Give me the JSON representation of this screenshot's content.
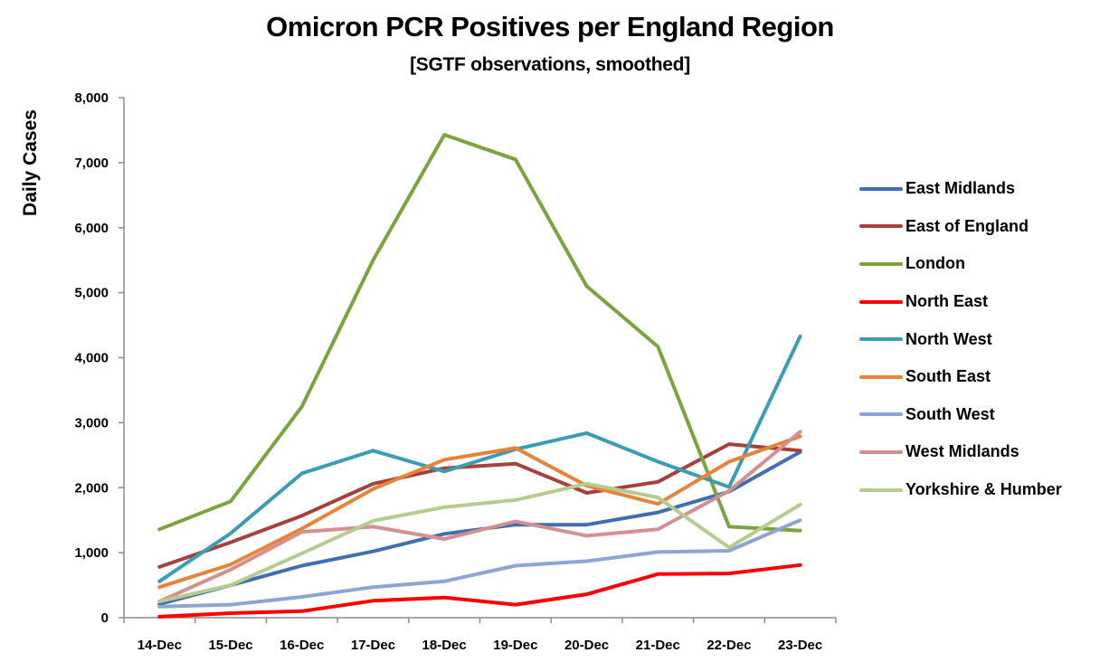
{
  "chart_data": {
    "type": "line",
    "title": "Omicron PCR Positives per England Region",
    "subtitle": "[SGTF observations, smoothed]",
    "xlabel": "",
    "ylabel": "Daily Cases",
    "ylim": [
      0,
      8000
    ],
    "yticks": [
      0,
      1000,
      2000,
      3000,
      4000,
      5000,
      6000,
      7000,
      8000
    ],
    "ytick_labels": [
      "0",
      "1,000",
      "2,000",
      "3,000",
      "4,000",
      "5,000",
      "6,000",
      "7,000",
      "8,000"
    ],
    "grid": false,
    "legend_position": "right",
    "categories": [
      "14-Dec",
      "15-Dec",
      "16-Dec",
      "17-Dec",
      "18-Dec",
      "19-Dec",
      "20-Dec",
      "21-Dec",
      "22-Dec",
      "23-Dec"
    ],
    "series": [
      {
        "name": "East Midlands",
        "color": "#3F6FAE",
        "values": [
          210,
          500,
          800,
          1020,
          1290,
          1430,
          1430,
          1620,
          1940,
          2550
        ]
      },
      {
        "name": "East of England",
        "color": "#A5403D",
        "values": [
          780,
          1160,
          1570,
          2060,
          2300,
          2370,
          1920,
          2090,
          2670,
          2570
        ]
      },
      {
        "name": "London",
        "color": "#7BA33E",
        "values": [
          1360,
          1790,
          3250,
          5500,
          7430,
          7050,
          5100,
          4170,
          1400,
          1340
        ]
      },
      {
        "name": "North East",
        "color": "#FF0000",
        "values": [
          15,
          70,
          100,
          260,
          310,
          200,
          360,
          670,
          680,
          810
        ]
      },
      {
        "name": "North West",
        "color": "#3A9DB2",
        "values": [
          560,
          1300,
          2220,
          2570,
          2250,
          2590,
          2840,
          2400,
          2010,
          4330
        ]
      },
      {
        "name": "South East",
        "color": "#E8833A",
        "values": [
          470,
          820,
          1370,
          1980,
          2430,
          2610,
          2030,
          1750,
          2400,
          2790
        ]
      },
      {
        "name": "South West",
        "color": "#8EA5D3",
        "values": [
          170,
          200,
          320,
          470,
          560,
          800,
          870,
          1010,
          1030,
          1500
        ]
      },
      {
        "name": "West Midlands",
        "color": "#D4908E",
        "values": [
          250,
          740,
          1320,
          1400,
          1210,
          1480,
          1260,
          1360,
          1950,
          2860
        ]
      },
      {
        "name": "Yorkshire & Humber",
        "color": "#B5CC8E",
        "values": [
          250,
          500,
          990,
          1490,
          1700,
          1810,
          2060,
          1850,
          1080,
          1740
        ]
      }
    ]
  }
}
